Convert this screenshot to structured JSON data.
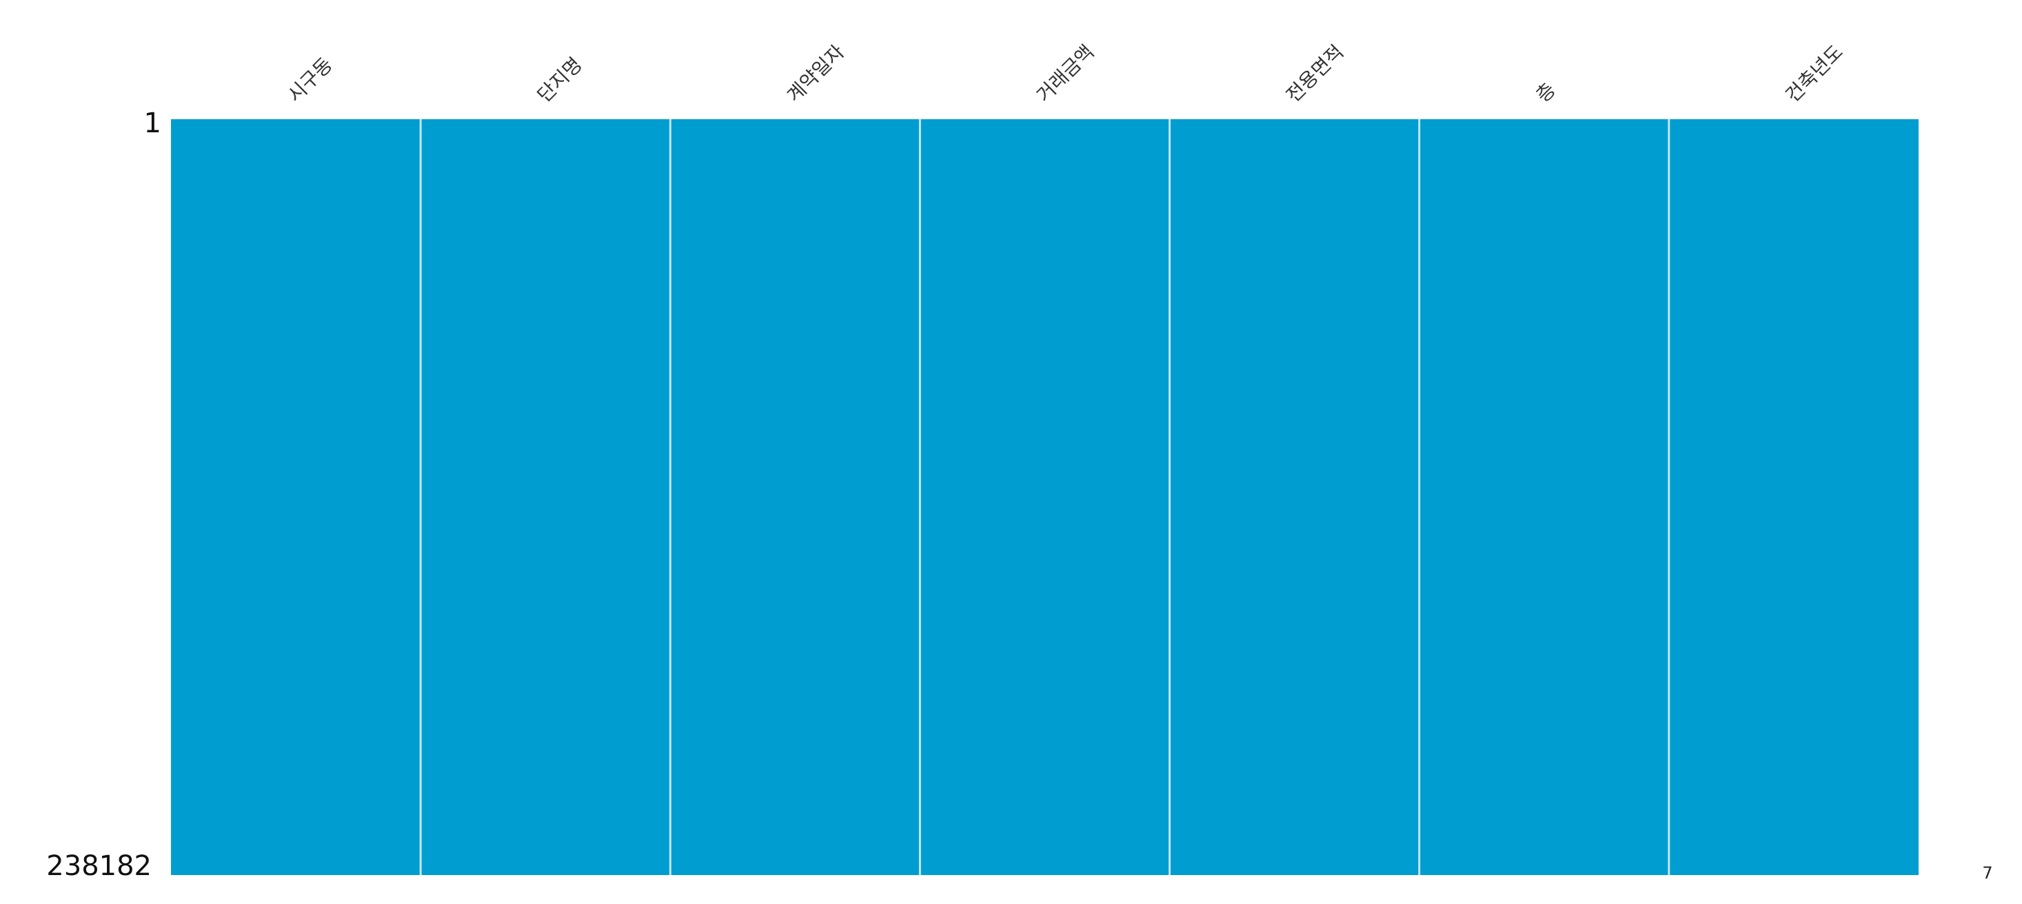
{
  "chart_data": {
    "type": "heatmap",
    "title": "",
    "columns": [
      "시구동",
      "단지명",
      "계약일자",
      "거래금액",
      "전용면적",
      "층",
      "건축년도"
    ],
    "row_top_label": "1",
    "row_bottom_label": "238182",
    "completeness_label": "7",
    "total_rows": 238182,
    "column_completeness": [
      1,
      1,
      1,
      1,
      1,
      1,
      1
    ],
    "colors": {
      "filled": "#009dd0",
      "separator": "#ffffff"
    }
  }
}
